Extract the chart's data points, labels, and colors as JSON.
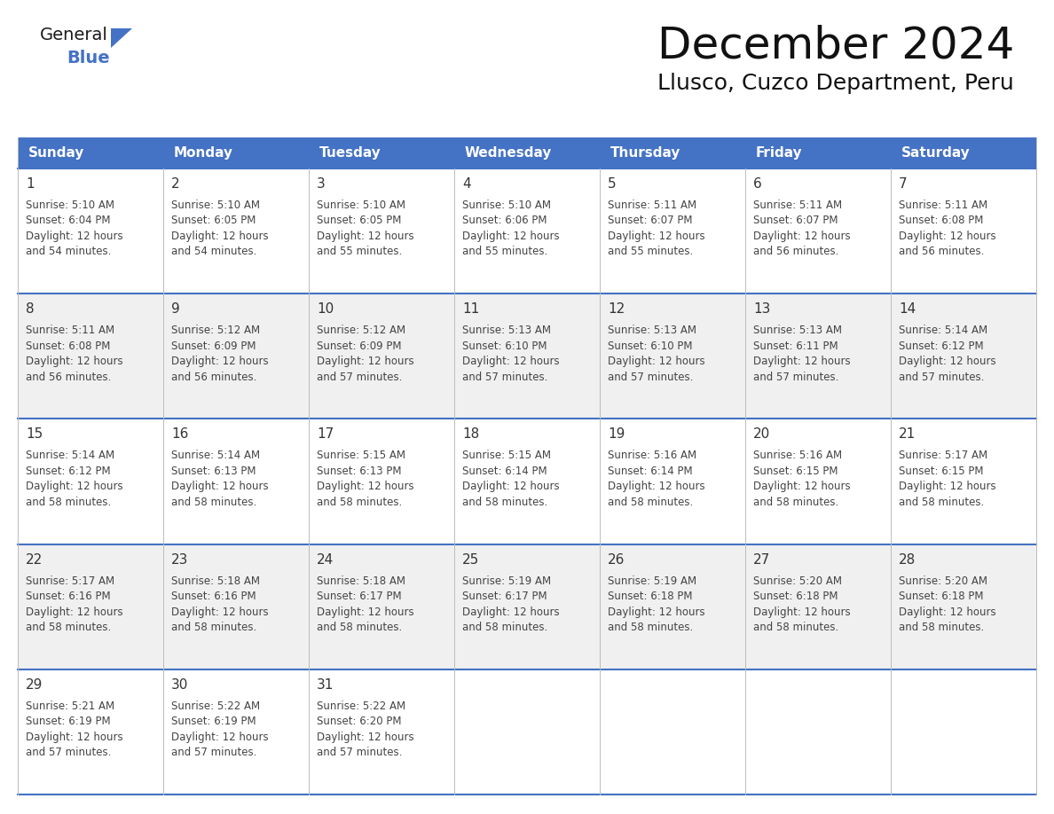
{
  "title": "December 2024",
  "subtitle": "Llusco, Cuzco Department, Peru",
  "header_color": "#4472C4",
  "header_text_color": "#FFFFFF",
  "cell_bg_white": "#FFFFFF",
  "cell_bg_gray": "#F0F0F0",
  "border_color": "#4472C4",
  "text_color_dark": "#333333",
  "text_color_body": "#444444",
  "days_of_week": [
    "Sunday",
    "Monday",
    "Tuesday",
    "Wednesday",
    "Thursday",
    "Friday",
    "Saturday"
  ],
  "weeks": [
    [
      {
        "day": 1,
        "sunrise": "5:10 AM",
        "sunset": "6:04 PM",
        "daylight": "12 hours",
        "daylight2": "and 54 minutes."
      },
      {
        "day": 2,
        "sunrise": "5:10 AM",
        "sunset": "6:05 PM",
        "daylight": "12 hours",
        "daylight2": "and 54 minutes."
      },
      {
        "day": 3,
        "sunrise": "5:10 AM",
        "sunset": "6:05 PM",
        "daylight": "12 hours",
        "daylight2": "and 55 minutes."
      },
      {
        "day": 4,
        "sunrise": "5:10 AM",
        "sunset": "6:06 PM",
        "daylight": "12 hours",
        "daylight2": "and 55 minutes."
      },
      {
        "day": 5,
        "sunrise": "5:11 AM",
        "sunset": "6:07 PM",
        "daylight": "12 hours",
        "daylight2": "and 55 minutes."
      },
      {
        "day": 6,
        "sunrise": "5:11 AM",
        "sunset": "6:07 PM",
        "daylight": "12 hours",
        "daylight2": "and 56 minutes."
      },
      {
        "day": 7,
        "sunrise": "5:11 AM",
        "sunset": "6:08 PM",
        "daylight": "12 hours",
        "daylight2": "and 56 minutes."
      }
    ],
    [
      {
        "day": 8,
        "sunrise": "5:11 AM",
        "sunset": "6:08 PM",
        "daylight": "12 hours",
        "daylight2": "and 56 minutes."
      },
      {
        "day": 9,
        "sunrise": "5:12 AM",
        "sunset": "6:09 PM",
        "daylight": "12 hours",
        "daylight2": "and 56 minutes."
      },
      {
        "day": 10,
        "sunrise": "5:12 AM",
        "sunset": "6:09 PM",
        "daylight": "12 hours",
        "daylight2": "and 57 minutes."
      },
      {
        "day": 11,
        "sunrise": "5:13 AM",
        "sunset": "6:10 PM",
        "daylight": "12 hours",
        "daylight2": "and 57 minutes."
      },
      {
        "day": 12,
        "sunrise": "5:13 AM",
        "sunset": "6:10 PM",
        "daylight": "12 hours",
        "daylight2": "and 57 minutes."
      },
      {
        "day": 13,
        "sunrise": "5:13 AM",
        "sunset": "6:11 PM",
        "daylight": "12 hours",
        "daylight2": "and 57 minutes."
      },
      {
        "day": 14,
        "sunrise": "5:14 AM",
        "sunset": "6:12 PM",
        "daylight": "12 hours",
        "daylight2": "and 57 minutes."
      }
    ],
    [
      {
        "day": 15,
        "sunrise": "5:14 AM",
        "sunset": "6:12 PM",
        "daylight": "12 hours",
        "daylight2": "and 58 minutes."
      },
      {
        "day": 16,
        "sunrise": "5:14 AM",
        "sunset": "6:13 PM",
        "daylight": "12 hours",
        "daylight2": "and 58 minutes."
      },
      {
        "day": 17,
        "sunrise": "5:15 AM",
        "sunset": "6:13 PM",
        "daylight": "12 hours",
        "daylight2": "and 58 minutes."
      },
      {
        "day": 18,
        "sunrise": "5:15 AM",
        "sunset": "6:14 PM",
        "daylight": "12 hours",
        "daylight2": "and 58 minutes."
      },
      {
        "day": 19,
        "sunrise": "5:16 AM",
        "sunset": "6:14 PM",
        "daylight": "12 hours",
        "daylight2": "and 58 minutes."
      },
      {
        "day": 20,
        "sunrise": "5:16 AM",
        "sunset": "6:15 PM",
        "daylight": "12 hours",
        "daylight2": "and 58 minutes."
      },
      {
        "day": 21,
        "sunrise": "5:17 AM",
        "sunset": "6:15 PM",
        "daylight": "12 hours",
        "daylight2": "and 58 minutes."
      }
    ],
    [
      {
        "day": 22,
        "sunrise": "5:17 AM",
        "sunset": "6:16 PM",
        "daylight": "12 hours",
        "daylight2": "and 58 minutes."
      },
      {
        "day": 23,
        "sunrise": "5:18 AM",
        "sunset": "6:16 PM",
        "daylight": "12 hours",
        "daylight2": "and 58 minutes."
      },
      {
        "day": 24,
        "sunrise": "5:18 AM",
        "sunset": "6:17 PM",
        "daylight": "12 hours",
        "daylight2": "and 58 minutes."
      },
      {
        "day": 25,
        "sunrise": "5:19 AM",
        "sunset": "6:17 PM",
        "daylight": "12 hours",
        "daylight2": "and 58 minutes."
      },
      {
        "day": 26,
        "sunrise": "5:19 AM",
        "sunset": "6:18 PM",
        "daylight": "12 hours",
        "daylight2": "and 58 minutes."
      },
      {
        "day": 27,
        "sunrise": "5:20 AM",
        "sunset": "6:18 PM",
        "daylight": "12 hours",
        "daylight2": "and 58 minutes."
      },
      {
        "day": 28,
        "sunrise": "5:20 AM",
        "sunset": "6:18 PM",
        "daylight": "12 hours",
        "daylight2": "and 58 minutes."
      }
    ],
    [
      {
        "day": 29,
        "sunrise": "5:21 AM",
        "sunset": "6:19 PM",
        "daylight": "12 hours",
        "daylight2": "and 57 minutes."
      },
      {
        "day": 30,
        "sunrise": "5:22 AM",
        "sunset": "6:19 PM",
        "daylight": "12 hours",
        "daylight2": "and 57 minutes."
      },
      {
        "day": 31,
        "sunrise": "5:22 AM",
        "sunset": "6:20 PM",
        "daylight": "12 hours",
        "daylight2": "and 57 minutes."
      },
      null,
      null,
      null,
      null
    ]
  ],
  "logo_text_general": "General",
  "logo_text_blue": "Blue",
  "logo_color_general": "#1a1a1a",
  "logo_color_blue": "#4472C4",
  "logo_triangle_color": "#4472C4",
  "title_fontsize": 36,
  "subtitle_fontsize": 18,
  "header_fontsize": 11,
  "daynum_fontsize": 11,
  "cell_fontsize": 8.5
}
